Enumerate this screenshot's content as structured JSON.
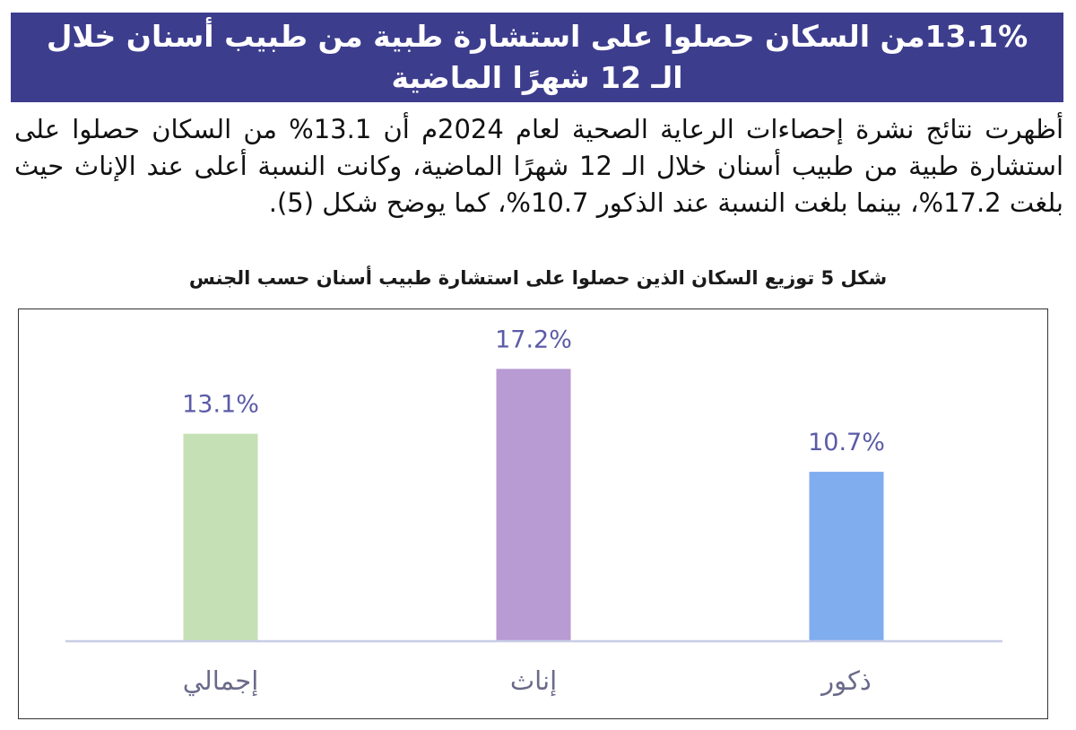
{
  "header": {
    "title": "13.1%من السكان حصلوا على استشارة طبية من طبيب أسنان خلال الـ 12 شهرًا الماضية"
  },
  "paragraph": "أظهرت نتائج نشرة إحصاءات الرعاية الصحية لعام 2024م أن 13.1% من السكان حصلوا على استشارة طبية من طبيب أسنان خلال الـ 12 شهرًا الماضية، وكانت النسبة أعلى عند الإناث حيث بلغت 17.2%، بينما بلغت النسبة عند الذكور 10.7%، كما يوضح شكل (5).",
  "chart_data": {
    "type": "bar",
    "title": "شكل 5 توزيع السكان الذين حصلوا على استشارة طبيب أسنان حسب الجنس",
    "categories": [
      "إجمالي",
      "إناث",
      "ذكور"
    ],
    "values": [
      13.1,
      17.2,
      10.7
    ],
    "value_labels": [
      "13.1%",
      "17.2%",
      "10.7%"
    ],
    "colors": [
      "#c5e0b4",
      "#b89bd2",
      "#7fadee"
    ],
    "label_color": "#5b5ba8",
    "category_color": "#6a6a8a",
    "axis_color": "#c9cde6",
    "xlabel": "",
    "ylabel": "",
    "ylim": [
      0,
      19.2
    ],
    "grid": false,
    "legend": "none"
  }
}
